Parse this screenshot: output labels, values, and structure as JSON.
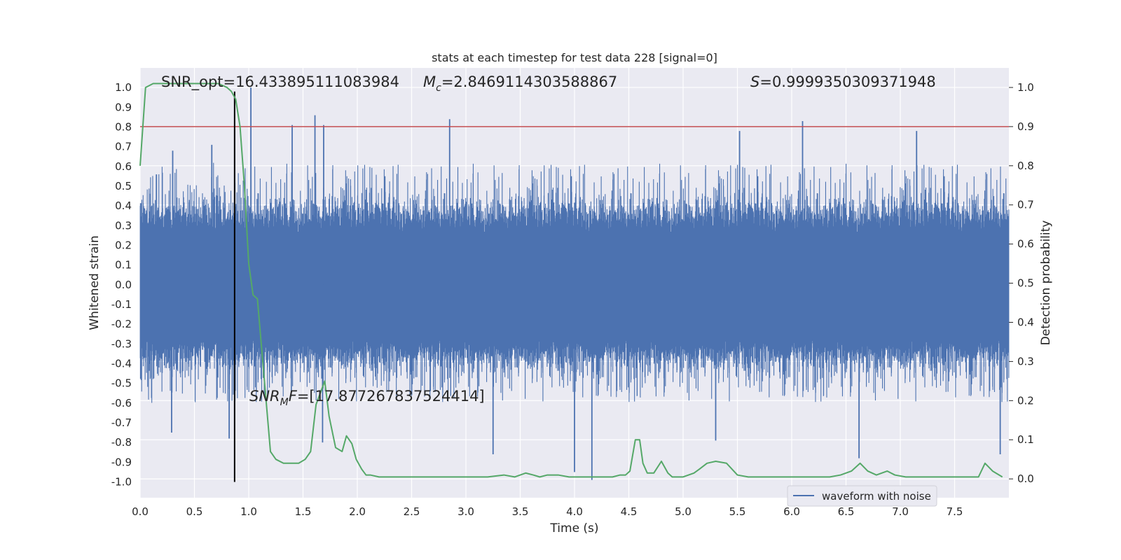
{
  "chart_data": {
    "type": "line",
    "title": "stats at each timestep for test data 228 [signal=0]",
    "xlabel": "Time (s)",
    "ylabel_left": "Whitened strain",
    "ylabel_right": "Detection probability",
    "xlim": [
      0.0,
      8.0
    ],
    "ylim_left": [
      -1.08,
      1.1
    ],
    "ylim_right": [
      -0.048,
      1.05
    ],
    "x_ticks": [
      "0.0",
      "0.5",
      "1.0",
      "1.5",
      "2.0",
      "2.5",
      "3.0",
      "3.5",
      "4.0",
      "4.5",
      "5.0",
      "5.5",
      "6.0",
      "6.5",
      "7.0",
      "7.5"
    ],
    "y_left_ticks": [
      "1.0",
      "0.9",
      "0.8",
      "0.7",
      "0.6",
      "0.5",
      "0.4",
      "0.3",
      "0.2",
      "0.1",
      "0.0",
      "-0.1",
      "-0.2",
      "-0.3",
      "-0.4",
      "-0.5",
      "-0.6",
      "-0.7",
      "-0.8",
      "-0.9",
      "-1.0"
    ],
    "y_right_ticks": [
      "1.0",
      "0.9",
      "0.8",
      "0.7",
      "0.6",
      "0.5",
      "0.4",
      "0.3",
      "0.2",
      "0.1",
      "0.0"
    ],
    "grid": true,
    "legend_position": "lower-right",
    "colors": {
      "background": "#eaeaf2",
      "grid": "#ffffff",
      "waveform": "#4c72b0",
      "probability": "#55a868",
      "threshold": "#c44e52",
      "marker": "#000000"
    },
    "series": [
      {
        "name": "waveform with noise",
        "axis": "left",
        "kind": "noise-envelope",
        "note": "dense whitened strain samples over 0-8 s; notable peaks listed",
        "peaks": [
          {
            "x": 0.15,
            "y": 0.56
          },
          {
            "x": 0.3,
            "y": 0.68
          },
          {
            "x": 0.66,
            "y": 0.71
          },
          {
            "x": 0.87,
            "y": 0.79
          },
          {
            "x": 1.02,
            "y": 1.0
          },
          {
            "x": 1.4,
            "y": 0.81
          },
          {
            "x": 1.61,
            "y": 0.86
          },
          {
            "x": 1.69,
            "y": 0.81
          },
          {
            "x": 2.85,
            "y": 0.84
          },
          {
            "x": 5.52,
            "y": 0.78
          },
          {
            "x": 6.1,
            "y": 0.83
          },
          {
            "x": 7.15,
            "y": 0.78
          }
        ],
        "troughs": [
          {
            "x": 0.29,
            "y": -0.75
          },
          {
            "x": 0.82,
            "y": -0.78
          },
          {
            "x": 1.68,
            "y": -0.8
          },
          {
            "x": 3.25,
            "y": -0.86
          },
          {
            "x": 4.0,
            "y": -0.95
          },
          {
            "x": 4.16,
            "y": -0.99
          },
          {
            "x": 5.3,
            "y": -0.79
          },
          {
            "x": 6.62,
            "y": -0.88
          },
          {
            "x": 7.92,
            "y": -0.86
          }
        ]
      },
      {
        "name": "detection probability",
        "axis": "right",
        "x": [
          0.0,
          0.05,
          0.12,
          0.2,
          0.3,
          0.4,
          0.5,
          0.6,
          0.65,
          0.72,
          0.8,
          0.84,
          0.88,
          0.92,
          0.96,
          1.0,
          1.04,
          1.08,
          1.12,
          1.16,
          1.2,
          1.25,
          1.32,
          1.4,
          1.46,
          1.52,
          1.57,
          1.62,
          1.66,
          1.7,
          1.74,
          1.8,
          1.86,
          1.9,
          1.95,
          1.99,
          2.04,
          2.08,
          2.12,
          2.2,
          2.3,
          2.4,
          2.6,
          2.8,
          3.0,
          3.2,
          3.35,
          3.45,
          3.55,
          3.62,
          3.68,
          3.75,
          3.85,
          3.95,
          4.05,
          4.15,
          4.25,
          4.35,
          4.42,
          4.47,
          4.51,
          4.56,
          4.6,
          4.63,
          4.67,
          4.73,
          4.8,
          4.86,
          4.9,
          4.95,
          5.0,
          5.1,
          5.15,
          5.22,
          5.3,
          5.4,
          5.5,
          5.6,
          5.8,
          6.0,
          6.2,
          6.35,
          6.45,
          6.55,
          6.63,
          6.7,
          6.78,
          6.88,
          6.95,
          7.05,
          7.2,
          7.4,
          7.55,
          7.65,
          7.72,
          7.78,
          7.85,
          7.94
        ],
        "y": [
          0.8,
          1.0,
          1.01,
          1.01,
          1.01,
          1.01,
          1.01,
          1.01,
          1.01,
          1.01,
          1.0,
          0.99,
          0.97,
          0.9,
          0.75,
          0.55,
          0.47,
          0.46,
          0.33,
          0.2,
          0.07,
          0.05,
          0.04,
          0.04,
          0.04,
          0.05,
          0.07,
          0.19,
          0.22,
          0.25,
          0.16,
          0.08,
          0.07,
          0.11,
          0.09,
          0.05,
          0.025,
          0.01,
          0.01,
          0.005,
          0.005,
          0.005,
          0.005,
          0.005,
          0.005,
          0.005,
          0.01,
          0.005,
          0.015,
          0.01,
          0.005,
          0.01,
          0.01,
          0.005,
          0.005,
          0.005,
          0.005,
          0.005,
          0.01,
          0.01,
          0.02,
          0.1,
          0.1,
          0.04,
          0.015,
          0.015,
          0.045,
          0.015,
          0.005,
          0.005,
          0.005,
          0.015,
          0.025,
          0.04,
          0.045,
          0.04,
          0.01,
          0.005,
          0.005,
          0.005,
          0.005,
          0.005,
          0.01,
          0.02,
          0.04,
          0.02,
          0.01,
          0.02,
          0.01,
          0.005,
          0.005,
          0.005,
          0.005,
          0.005,
          0.005,
          0.04,
          0.02,
          0.005
        ]
      }
    ],
    "threshold_line": {
      "axis": "right",
      "y": 0.9
    },
    "marker_line": {
      "x": 0.87,
      "y_from": -1.0,
      "y_to": 0.98
    },
    "annotations": {
      "snr_opt": "SNR_opt=16.433895111083984",
      "mc_symbol": "M",
      "mc_sub": "c",
      "mc_value": "=2.8469114303588867",
      "s_symbol": "S",
      "s_value": "=0.9999350309371948",
      "snr_mf_symbol": "SNR",
      "snr_mf_sub": "M",
      "snr_mf_tail": "F",
      "snr_mf_value": "=[17.877267837524414]"
    },
    "legend": {
      "label": "waveform with noise"
    }
  }
}
